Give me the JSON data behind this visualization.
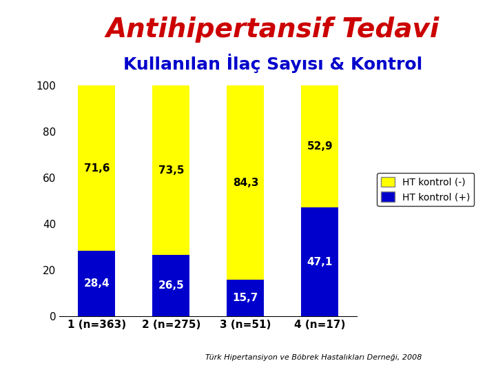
{
  "title_line1": "Antihipertansif Tedavi",
  "title_line2": "Kullanılan İlaç Sayısı & Kontrol",
  "categories": [
    "1 (n=363)",
    "2 (n=275)",
    "3 (n=51)",
    "4 (n=17)"
  ],
  "blue_values": [
    28.4,
    26.5,
    15.7,
    47.1
  ],
  "yellow_values": [
    71.6,
    73.5,
    84.3,
    52.9
  ],
  "blue_labels": [
    "28,4",
    "26,5",
    "15,7",
    "47,1"
  ],
  "yellow_labels": [
    "71,6",
    "73,5",
    "84,3",
    "52,9"
  ],
  "blue_color": "#0000CC",
  "yellow_color": "#FFFF00",
  "legend_blue": "HT kontrol (+)",
  "legend_yellow": "HT kontrol (-)",
  "ylim": [
    0,
    100
  ],
  "yticks": [
    0,
    20,
    40,
    60,
    80,
    100
  ],
  "footer": "Türk Hipertansiyon ve Böbrek Hastalıkları Derneği, 2008",
  "background_color": "#FFFFFF",
  "title1_color": "#CC0000",
  "title2_color": "#0000CC",
  "bar_width": 0.5
}
